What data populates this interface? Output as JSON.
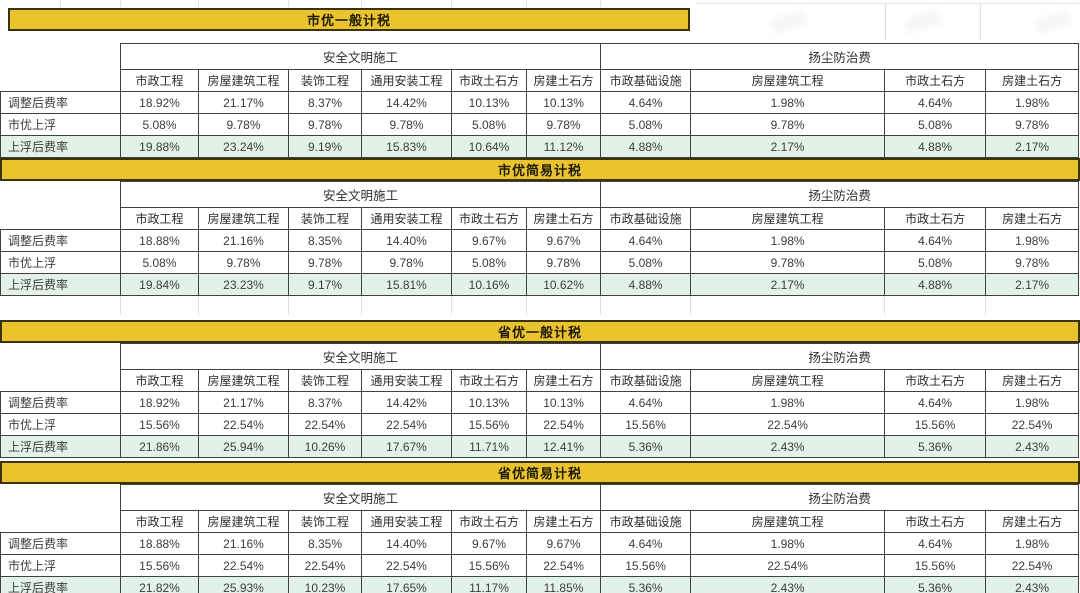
{
  "theme": {
    "accent_yellow": "#ebc32c",
    "band_border": "#3a3208",
    "table_border": "#414141",
    "highlight_green": "#e3f2e8",
    "background": "#ffffff"
  },
  "columns": {
    "safety_group": "安全文明施工",
    "dust_group": "扬尘防治费",
    "safety_cols": [
      "市政工程",
      "房屋建筑工程",
      "装饰工程",
      "通用安装工程",
      "市政土石方",
      "房建土石方"
    ],
    "dust_cols": [
      "市政基础设施",
      "房屋建筑工程",
      "市政土石方",
      "房建土石方"
    ]
  },
  "sections": [
    {
      "title": "市优一般计税",
      "rows": [
        {
          "label": "调整后费率",
          "highlight": false,
          "values": [
            "18.92%",
            "21.17%",
            "8.37%",
            "14.42%",
            "10.13%",
            "10.13%",
            "4.64%",
            "1.98%",
            "4.64%",
            "1.98%"
          ]
        },
        {
          "label": "市优上浮",
          "highlight": false,
          "values": [
            "5.08%",
            "9.78%",
            "9.78%",
            "9.78%",
            "5.08%",
            "9.78%",
            "5.08%",
            "9.78%",
            "5.08%",
            "9.78%"
          ]
        },
        {
          "label": "上浮后费率",
          "highlight": true,
          "values": [
            "19.88%",
            "23.24%",
            "9.19%",
            "15.83%",
            "10.64%",
            "11.12%",
            "4.88%",
            "2.17%",
            "4.88%",
            "2.17%"
          ]
        }
      ]
    },
    {
      "title": "市优简易计税",
      "rows": [
        {
          "label": "调整后费率",
          "highlight": false,
          "values": [
            "18.88%",
            "21.16%",
            "8.35%",
            "14.40%",
            "9.67%",
            "9.67%",
            "4.64%",
            "1.98%",
            "4.64%",
            "1.98%"
          ]
        },
        {
          "label": "市优上浮",
          "highlight": false,
          "values": [
            "5.08%",
            "9.78%",
            "9.78%",
            "9.78%",
            "5.08%",
            "9.78%",
            "5.08%",
            "9.78%",
            "5.08%",
            "9.78%"
          ]
        },
        {
          "label": "上浮后费率",
          "highlight": true,
          "values": [
            "19.84%",
            "23.23%",
            "9.17%",
            "15.81%",
            "10.16%",
            "10.62%",
            "4.88%",
            "2.17%",
            "4.88%",
            "2.17%"
          ]
        }
      ]
    },
    {
      "title": "省优一般计税",
      "rows": [
        {
          "label": "调整后费率",
          "highlight": false,
          "values": [
            "18.92%",
            "21.17%",
            "8.37%",
            "14.42%",
            "10.13%",
            "10.13%",
            "4.64%",
            "1.98%",
            "4.64%",
            "1.98%"
          ]
        },
        {
          "label": "市优上浮",
          "highlight": false,
          "values": [
            "15.56%",
            "22.54%",
            "22.54%",
            "22.54%",
            "15.56%",
            "22.54%",
            "15.56%",
            "22.54%",
            "15.56%",
            "22.54%"
          ]
        },
        {
          "label": "上浮后费率",
          "highlight": true,
          "values": [
            "21.86%",
            "25.94%",
            "10.26%",
            "17.67%",
            "11.71%",
            "12.41%",
            "5.36%",
            "2.43%",
            "5.36%",
            "2.43%"
          ]
        }
      ]
    },
    {
      "title": "省优简易计税",
      "rows": [
        {
          "label": "调整后费率",
          "highlight": false,
          "values": [
            "18.88%",
            "21.16%",
            "8.35%",
            "14.40%",
            "9.67%",
            "9.67%",
            "4.64%",
            "1.98%",
            "4.64%",
            "1.98%"
          ]
        },
        {
          "label": "市优上浮",
          "highlight": false,
          "values": [
            "15.56%",
            "22.54%",
            "22.54%",
            "22.54%",
            "15.56%",
            "22.54%",
            "15.56%",
            "22.54%",
            "15.56%",
            "22.54%"
          ]
        },
        {
          "label": "上浮后费率",
          "highlight": true,
          "values": [
            "21.82%",
            "25.93%",
            "10.23%",
            "17.65%",
            "11.17%",
            "11.85%",
            "5.36%",
            "2.43%",
            "5.36%",
            "2.43%"
          ]
        }
      ]
    }
  ]
}
